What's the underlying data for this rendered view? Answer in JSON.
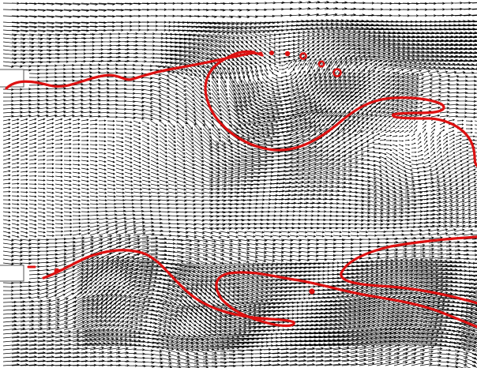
{
  "figure": {
    "description_items": [],
    "arrow_color": "#000000",
    "contour_color": "#dd1111",
    "background": "#ffffff"
  }
}
